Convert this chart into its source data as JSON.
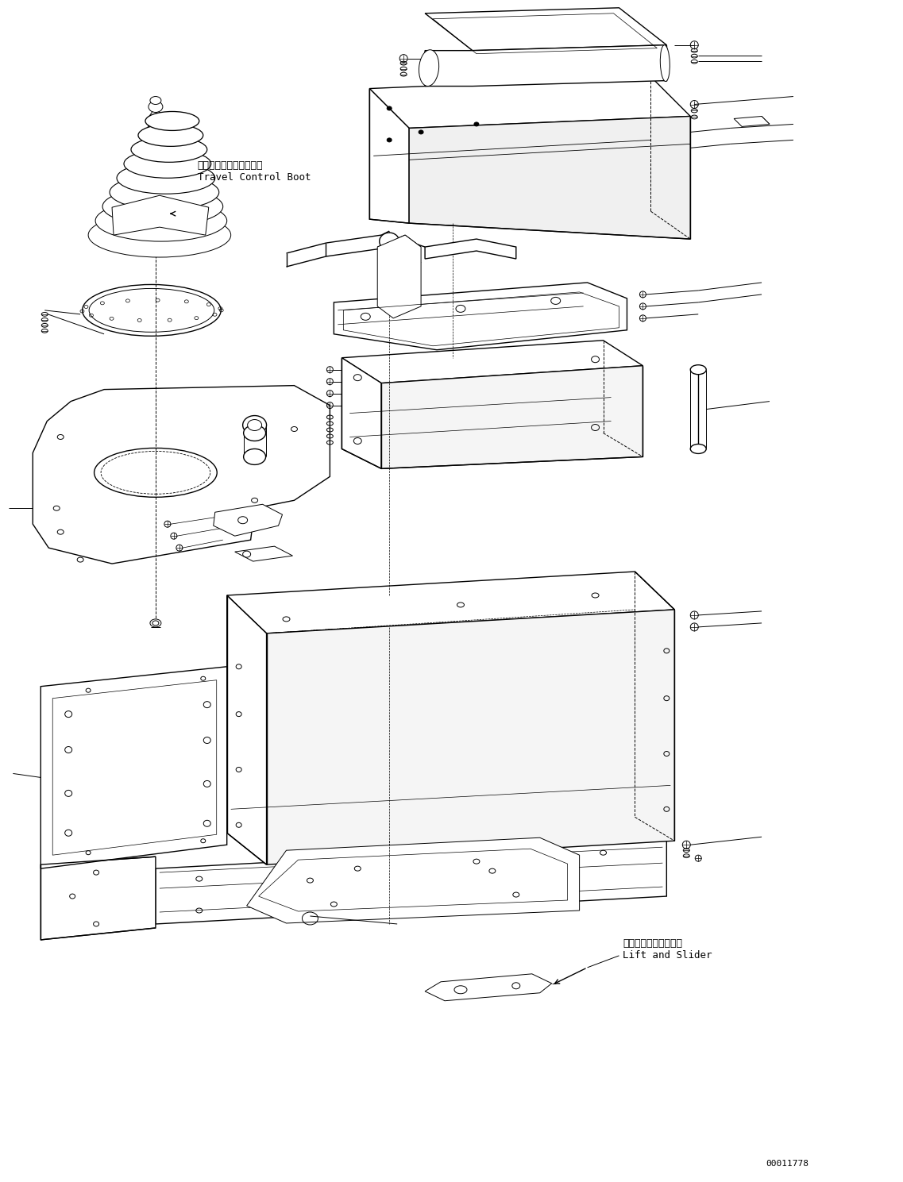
{
  "background_color": "#ffffff",
  "line_color": "#000000",
  "figure_width": 11.37,
  "figure_height": 14.89,
  "dpi": 100,
  "part_id": "00011778",
  "label_travel_boot_jp": "走行コントロールブート",
  "label_travel_boot_en": "Travel Control Boot",
  "label_lift_slider_jp": "リフトおよびスライダ",
  "label_lift_slider_en": "Lift and Slider"
}
